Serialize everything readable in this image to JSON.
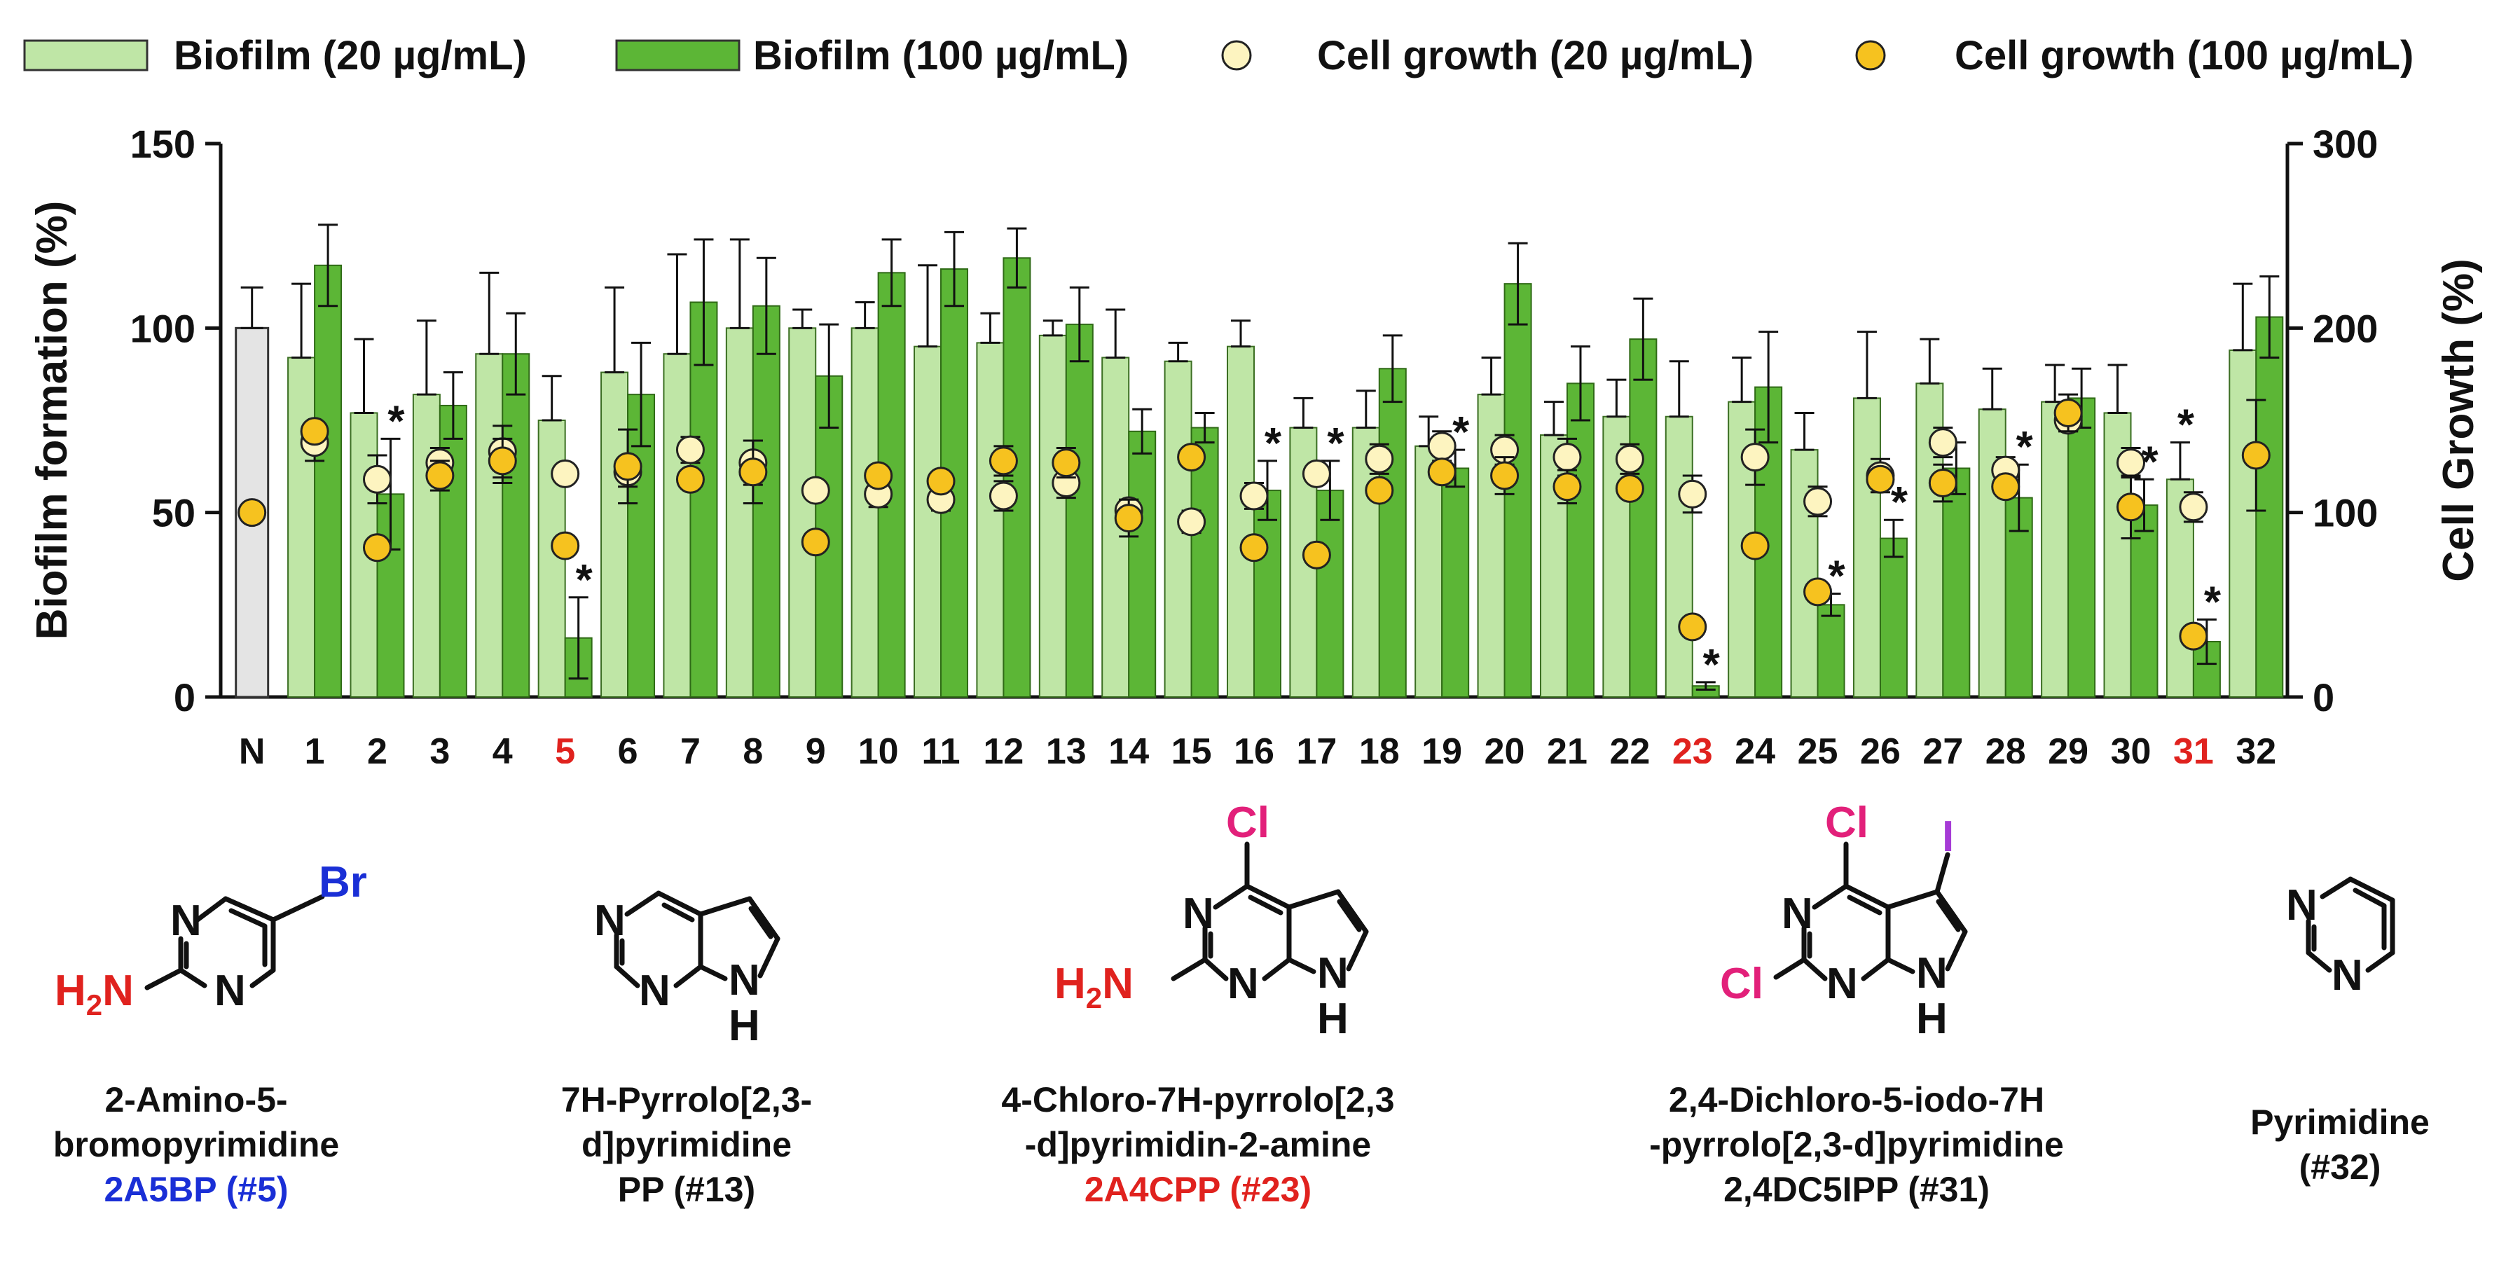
{
  "chart_data": {
    "type": "bar",
    "categories": [
      "N",
      "1",
      "2",
      "3",
      "4",
      "5",
      "6",
      "7",
      "8",
      "9",
      "10",
      "11",
      "12",
      "13",
      "14",
      "15",
      "16",
      "17",
      "18",
      "19",
      "20",
      "21",
      "22",
      "23",
      "24",
      "25",
      "26",
      "27",
      "28",
      "29",
      "30",
      "31",
      "32"
    ],
    "highlight_categories": [
      "5",
      "23",
      "31"
    ],
    "y_left": {
      "label": "Biofilm formation (%)",
      "range": [
        0,
        150
      ],
      "ticks": [
        0,
        50,
        100,
        150
      ]
    },
    "y_right": {
      "label": "Cell Growth (%)",
      "range": [
        0,
        300
      ],
      "ticks": [
        0,
        100,
        200,
        300
      ]
    },
    "series": [
      {
        "name": "Biofilm (20 µg/mL)",
        "kind": "bar",
        "axis": "left",
        "values": [
          100,
          92,
          77,
          82,
          93,
          75,
          88,
          93,
          100,
          100,
          100,
          95,
          96,
          98,
          92,
          91,
          95,
          73,
          73,
          68,
          82,
          71,
          76,
          76,
          80,
          67,
          81,
          85,
          78,
          80,
          77,
          59,
          94
        ],
        "errors": [
          11,
          20,
          20,
          20,
          22,
          12,
          23,
          27,
          24,
          5,
          7,
          22,
          8,
          4,
          13,
          5,
          7,
          8,
          10,
          8,
          10,
          9,
          10,
          15,
          12,
          10,
          18,
          12,
          11,
          10,
          13,
          10,
          18
        ]
      },
      {
        "name": "Biofilm (100 µg/mL)",
        "kind": "bar",
        "axis": "left",
        "values": [
          null,
          117,
          55,
          79,
          93,
          16,
          82,
          107,
          106,
          87,
          115,
          116,
          119,
          101,
          72,
          73,
          56,
          56,
          89,
          62,
          112,
          85,
          97,
          3,
          84,
          25,
          43,
          62,
          54,
          81,
          52,
          15,
          103
        ],
        "errors": [
          null,
          11,
          15,
          9,
          11,
          11,
          14,
          17,
          13,
          14,
          9,
          10,
          8,
          10,
          6,
          4,
          8,
          8,
          9,
          5,
          11,
          10,
          11,
          1,
          15,
          3,
          5,
          7,
          9,
          8,
          7,
          6,
          11
        ]
      },
      {
        "name": "Cell growth (20 µg/mL)",
        "kind": "point",
        "axis": "right",
        "values": [
          null,
          138,
          118,
          127,
          133,
          121,
          122,
          134,
          127,
          112,
          110,
          107,
          109,
          116,
          101,
          95,
          109,
          121,
          129,
          136,
          134,
          130,
          129,
          110,
          130,
          106,
          120,
          138,
          123,
          150,
          127,
          103,
          null
        ],
        "errors": [
          null,
          10,
          13,
          8,
          14,
          5,
          8,
          7,
          12,
          5,
          7,
          6,
          8,
          8,
          6,
          6,
          7,
          5,
          8,
          8,
          8,
          10,
          8,
          10,
          15,
          8,
          9,
          8,
          7,
          6,
          8,
          8,
          null
        ]
      },
      {
        "name": "Cell growth (100 µg/mL)",
        "kind": "point",
        "axis": "right",
        "values": [
          100,
          144,
          81,
          120,
          128,
          82,
          125,
          118,
          122,
          84,
          120,
          117,
          128,
          127,
          97,
          130,
          81,
          77,
          112,
          122,
          120,
          114,
          113,
          38,
          82,
          57,
          118,
          116,
          114,
          154,
          103,
          33,
          131
        ],
        "errors": [
          null,
          null,
          null,
          8,
          12,
          null,
          20,
          null,
          17,
          null,
          null,
          null,
          8,
          8,
          10,
          null,
          null,
          null,
          null,
          null,
          10,
          9,
          null,
          null,
          null,
          null,
          null,
          10,
          null,
          10,
          17,
          null,
          30
        ]
      }
    ],
    "significance": [
      {
        "category": "2",
        "series": "Biofilm (100 µg/mL)"
      },
      {
        "category": "5",
        "series": "Biofilm (100 µg/mL)"
      },
      {
        "category": "16",
        "series": "Biofilm (100 µg/mL)"
      },
      {
        "category": "17",
        "series": "Biofilm (100 µg/mL)"
      },
      {
        "category": "19",
        "series": "Biofilm (100 µg/mL)"
      },
      {
        "category": "23",
        "series": "Biofilm (100 µg/mL)"
      },
      {
        "category": "25",
        "series": "Biofilm (100 µg/mL)"
      },
      {
        "category": "26",
        "series": "Biofilm (100 µg/mL)"
      },
      {
        "category": "28",
        "series": "Biofilm (100 µg/mL)"
      },
      {
        "category": "30",
        "series": "Biofilm (100 µg/mL)"
      },
      {
        "category": "31",
        "series": "Biofilm (20 µg/mL)"
      },
      {
        "category": "31",
        "series": "Biofilm (100 µg/mL)"
      }
    ],
    "star_symbol": "*",
    "legend": {
      "placement": "top",
      "labels": [
        "Biofilm (20 µg/mL)",
        "Biofilm (100 µg/mL)",
        "Cell growth (20 µg/mL)",
        "Cell growth (100 µg/mL)"
      ]
    },
    "grid": false
  },
  "colors": {
    "control_bar": "#e4e4e4",
    "bar_20": "#bfe6a6",
    "bar_100": "#5cb636",
    "point_20": "#fdf4c0",
    "point_100": "#f6c21f",
    "highlight_label": "#e0221e",
    "blue_text": "#1a2fd6",
    "red_text": "#e0221e",
    "magenta_text": "#e2207a",
    "purple_text": "#a63bd6"
  },
  "structures": [
    {
      "lines": [
        "2-Amino-5-",
        "bromopyrimidine"
      ],
      "code": "2A5BP (#5)",
      "code_color": "#1a2fd6",
      "atoms": {
        "n": "N",
        "br": "Br",
        "h2n": "H2N"
      }
    },
    {
      "lines": [
        "7H-Pyrrolo[2,3-",
        "d]pyrimidine"
      ],
      "code": "PP (#13)",
      "code_color": "#111111",
      "atoms": {
        "n": "N",
        "h": "H"
      }
    },
    {
      "lines": [
        "4-Chloro-7H-pyrrolo[2,3",
        "-d]pyrimidin-2-amine"
      ],
      "code": "2A4CPP (#23)",
      "code_color": "#e0221e",
      "atoms": {
        "n": "N",
        "h": "H",
        "cl": "Cl",
        "h2n": "H2N"
      }
    },
    {
      "lines": [
        "2,4-Dichloro-5-iodo-7H",
        "-pyrrolo[2,3-d]pyrimidine"
      ],
      "code": "2,4DC5IPP (#31)",
      "code_color": "#111111",
      "atoms": {
        "n": "N",
        "h": "H",
        "cl": "Cl",
        "i": "I"
      }
    },
    {
      "lines": [
        "Pyrimidine"
      ],
      "code": "(#32)",
      "code_color": "#111111",
      "atoms": {
        "n": "N"
      }
    }
  ]
}
